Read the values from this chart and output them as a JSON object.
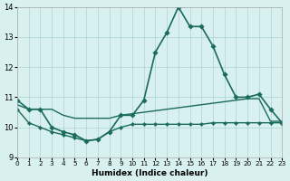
{
  "xlabel": "Humidex (Indice chaleur)",
  "ylabel": "",
  "xlim": [
    0,
    23
  ],
  "ylim": [
    9,
    14
  ],
  "yticks": [
    9,
    10,
    11,
    12,
    13,
    14
  ],
  "xticks": [
    0,
    1,
    2,
    3,
    4,
    5,
    6,
    7,
    8,
    9,
    10,
    11,
    12,
    13,
    14,
    15,
    16,
    17,
    18,
    19,
    20,
    21,
    22,
    23
  ],
  "background_color": "#d9f0f0",
  "grid_color": "#aad4d4",
  "line_color": "#1a6b5a",
  "main_line": {
    "x": [
      0,
      1,
      2,
      3,
      4,
      5,
      6,
      7,
      8,
      9,
      10,
      11,
      12,
      13,
      14,
      15,
      16,
      17,
      18,
      19,
      20,
      21,
      22,
      23
    ],
    "y": [
      10.9,
      10.6,
      10.6,
      10.0,
      9.85,
      9.75,
      9.55,
      9.6,
      9.85,
      10.4,
      10.4,
      10.9,
      12.5,
      13.15,
      14.0,
      13.35,
      13.35,
      12.7,
      11.75,
      11.0,
      11.0,
      11.1,
      10.6,
      10.15
    ]
  },
  "upper_line": {
    "x": [
      0,
      1,
      2,
      3,
      4,
      5,
      6,
      7,
      8,
      9,
      10,
      11,
      12,
      13,
      14,
      15,
      16,
      17,
      18,
      19,
      20,
      21,
      22,
      23
    ],
    "y": [
      10.75,
      10.6,
      10.6,
      10.6,
      10.4,
      10.3,
      10.3,
      10.3,
      10.3,
      10.4,
      10.45,
      10.5,
      10.55,
      10.6,
      10.65,
      10.7,
      10.75,
      10.8,
      10.85,
      10.9,
      10.95,
      10.95,
      10.2,
      10.2
    ]
  },
  "lower_line": {
    "x": [
      0,
      1,
      2,
      3,
      4,
      5,
      6,
      7,
      8,
      9,
      10,
      11,
      12,
      13,
      14,
      15,
      16,
      17,
      18,
      19,
      20,
      21,
      22,
      23
    ],
    "y": [
      10.6,
      10.15,
      10.0,
      9.85,
      9.75,
      9.65,
      9.55,
      9.6,
      9.85,
      10.0,
      10.1,
      10.1,
      10.1,
      10.1,
      10.1,
      10.1,
      10.1,
      10.15,
      10.15,
      10.15,
      10.15,
      10.15,
      10.15,
      10.15
    ]
  }
}
